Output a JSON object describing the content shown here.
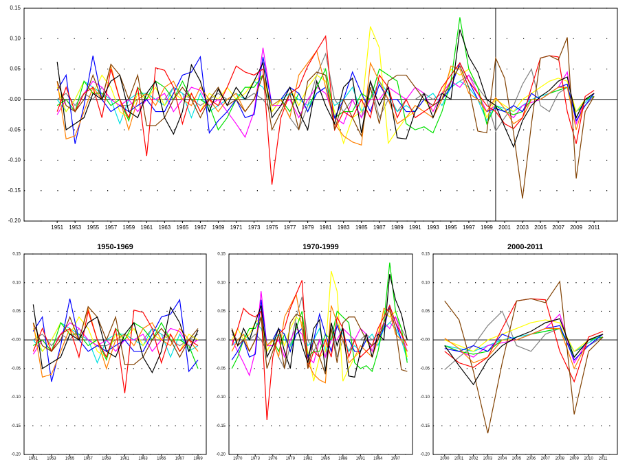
{
  "chart_data": [
    {
      "type": "line",
      "x": [
        1951,
        1952,
        1953,
        1954,
        1955,
        1956,
        1957,
        1958,
        1959,
        1960,
        1961,
        1962,
        1963,
        1964,
        1965,
        1966,
        1967,
        1968,
        1969,
        1970,
        1971,
        1972,
        1973,
        1974,
        1975,
        1976,
        1977,
        1978,
        1979,
        1980,
        1981,
        1982,
        1983,
        1984,
        1985,
        1986,
        1987,
        1988,
        1989,
        1990,
        1991,
        1992,
        1993,
        1994,
        1995,
        1996,
        1997,
        1998,
        1999,
        2000,
        2001,
        2002,
        2003,
        2004,
        2005,
        2006,
        2007,
        2008,
        2009,
        2010,
        2011
      ],
      "xlim": [
        1947.3,
        2013.6
      ],
      "ylim": [
        -0.2,
        0.15
      ],
      "xticks": [
        1951,
        1953,
        1955,
        1957,
        1959,
        1961,
        1963,
        1965,
        1967,
        1969,
        1971,
        1973,
        1975,
        1977,
        1979,
        1981,
        1983,
        1985,
        1987,
        1989,
        1991,
        1993,
        1995,
        1997,
        1999,
        2001,
        2003,
        2005,
        2007,
        2009,
        2011
      ],
      "yticks": [
        0.15,
        {
          "value": 0.1,
          "label": "0.10"
        },
        0.05,
        {
          "value": 0,
          "label": "-0.00"
        },
        -0.05,
        {
          "value": -0.1,
          "label": "-0.10"
        },
        -0.15,
        {
          "value": -0.2,
          "label": "-0.20"
        }
      ],
      "grid": true,
      "vline": 2000,
      "series": [
        {
          "color": "#808080",
          "values": [
            0.0,
            0.01,
            -0.01,
            0.01,
            0.0,
            0.02,
            0.0,
            -0.01,
            -0.01,
            0.0,
            0.01,
            0.0,
            0.0,
            0.02,
            0.01,
            0.0,
            -0.01,
            0.0,
            0.01,
            0.0,
            0.01,
            0.0,
            0.01,
            0.0,
            -0.02,
            0.0,
            -0.03,
            -0.05,
            -0.01,
            0.04,
            0.075,
            0.0,
            -0.02,
            0.0,
            -0.03,
            0.03,
            -0.03,
            0.0,
            -0.02,
            0.0,
            0.0,
            0.01,
            0.0,
            0.01,
            0.02,
            0.03,
            0.04,
            0.02,
            0.0,
            -0.052,
            -0.03,
            -0.01,
            0.025,
            0.05,
            -0.01,
            -0.02,
            0.01,
            0.02,
            -0.02,
            -0.01,
            0.005
          ]
        },
        {
          "color": "#00e0e0",
          "values": [
            0.0,
            -0.02,
            0.0,
            0.03,
            0.02,
            0.01,
            0.0,
            -0.04,
            0.0,
            0.01,
            0.01,
            0.0,
            -0.01,
            0.02,
            0.01,
            -0.03,
            0.01,
            -0.02,
            -0.01,
            0.0,
            0.01,
            0.0,
            0.03,
            0.02,
            -0.01,
            0.0,
            0.01,
            0.0,
            -0.01,
            0.01,
            0.02,
            -0.01,
            0.0,
            0.02,
            -0.02,
            0.0,
            0.03,
            0.01,
            -0.02,
            -0.01,
            -0.02,
            0.0,
            0.01,
            -0.01,
            0.02,
            0.03,
            0.02,
            0.0,
            -0.035,
            -0.01,
            -0.015,
            -0.02,
            -0.01,
            0.0,
            0.005,
            0.01,
            0.015,
            0.02,
            -0.02,
            -0.005,
            0.01
          ]
        },
        {
          "color": "#ffff00",
          "values": [
            0.02,
            -0.02,
            0.0,
            0.03,
            0.01,
            0.04,
            0.02,
            -0.02,
            -0.03,
            0.01,
            0.0,
            0.02,
            -0.01,
            0.01,
            0.0,
            0.01,
            -0.02,
            0.01,
            0.0,
            0.02,
            0.0,
            0.01,
            0.03,
            0.04,
            -0.02,
            0.0,
            0.02,
            -0.01,
            0.02,
            0.04,
            0.03,
            -0.02,
            -0.072,
            -0.03,
            -0.02,
            0.12,
            0.085,
            -0.072,
            -0.05,
            -0.03,
            -0.02,
            0.0,
            -0.02,
            0.01,
            0.05,
            0.04,
            0.05,
            0.02,
            -0.03,
            0.0,
            -0.01,
            -0.02,
            0.0,
            0.01,
            0.02,
            0.03,
            0.035,
            0.03,
            -0.02,
            0.0,
            0.01
          ]
        },
        {
          "color": "#ff00ff",
          "values": [
            -0.025,
            0.0,
            -0.02,
            0.01,
            0.03,
            0.02,
            0.0,
            -0.01,
            0.0,
            -0.02,
            0.0,
            0.0,
            0.01,
            -0.02,
            0.0,
            0.02,
            0.015,
            -0.01,
            0.0,
            -0.02,
            -0.04,
            -0.062,
            -0.02,
            0.085,
            -0.01,
            -0.01,
            0.0,
            -0.03,
            0.0,
            0.02,
            0.01,
            -0.03,
            -0.04,
            0.0,
            -0.03,
            0.0,
            0.0,
            0.02,
            0.01,
            0.0,
            0.02,
            0.01,
            -0.02,
            0.01,
            0.03,
            0.02,
            0.04,
            0.01,
            -0.02,
            -0.01,
            -0.02,
            -0.03,
            -0.01,
            -0.005,
            0.0,
            0.01,
            0.02,
            0.045,
            -0.04,
            0.0,
            0.01
          ]
        },
        {
          "color": "#00e000",
          "values": [
            -0.01,
            0.0,
            -0.02,
            0.03,
            0.01,
            0.01,
            -0.01,
            0.0,
            -0.035,
            0.02,
            0.0,
            0.03,
            0.02,
            0.0,
            0.03,
            0.0,
            0.0,
            -0.01,
            -0.05,
            -0.03,
            0.0,
            0.02,
            0.02,
            0.04,
            -0.01,
            0.0,
            -0.02,
            0.01,
            -0.02,
            0.02,
            0.05,
            -0.03,
            -0.02,
            -0.02,
            0.01,
            0.0,
            0.05,
            0.04,
            0.03,
            -0.04,
            -0.05,
            -0.045,
            -0.055,
            -0.02,
            0.03,
            0.135,
            0.05,
            0.02,
            -0.04,
            -0.01,
            -0.02,
            -0.025,
            -0.02,
            0.0,
            0.0,
            0.01,
            0.015,
            0.02,
            -0.03,
            0.0,
            0.005
          ]
        },
        {
          "color": "#0000ff",
          "values": [
            0.015,
            0.04,
            -0.073,
            -0.01,
            0.072,
            0.0,
            -0.02,
            -0.01,
            -0.02,
            -0.01,
            0.0,
            -0.02,
            -0.02,
            0.01,
            0.04,
            0.045,
            0.07,
            -0.055,
            -0.035,
            -0.02,
            0.0,
            -0.03,
            -0.025,
            0.07,
            -0.01,
            0.0,
            0.02,
            0.01,
            -0.02,
            0.01,
            0.02,
            -0.03,
            0.0,
            0.045,
            0.01,
            -0.02,
            0.025,
            0.0,
            0.0,
            -0.02,
            -0.02,
            0.0,
            -0.01,
            0.0,
            0.02,
            0.06,
            0.03,
            0.0,
            -0.02,
            -0.015,
            -0.02,
            -0.01,
            -0.02,
            0.01,
            0.0,
            0.01,
            0.02,
            0.025,
            -0.035,
            -0.01,
            0.01
          ]
        },
        {
          "color": "#ff8000",
          "values": [
            0.03,
            -0.065,
            -0.06,
            -0.02,
            0.02,
            0.0,
            0.055,
            0.0,
            -0.05,
            0.0,
            0.01,
            -0.01,
            0.02,
            0.03,
            0.0,
            -0.01,
            0.02,
            0.0,
            -0.02,
            0.0,
            0.01,
            -0.02,
            0.0,
            0.04,
            -0.01,
            0.0,
            -0.03,
            0.04,
            0.06,
            0.08,
            0.02,
            -0.04,
            -0.06,
            -0.07,
            -0.075,
            0.06,
            0.03,
            0.0,
            -0.04,
            -0.03,
            -0.01,
            -0.02,
            -0.03,
            0.0,
            0.055,
            0.05,
            0.01,
            0.0,
            -0.02,
            0.003,
            -0.015,
            -0.04,
            -0.03,
            0.0,
            0.0,
            0.01,
            0.02,
            0.02,
            -0.05,
            0.0,
            0.01
          ]
        },
        {
          "color": "#ff0000",
          "values": [
            -0.02,
            0.02,
            -0.02,
            0.01,
            0.02,
            -0.03,
            0.05,
            0.0,
            -0.03,
            0.02,
            -0.093,
            0.052,
            0.048,
            0.02,
            -0.04,
            0.01,
            -0.02,
            0.0,
            -0.01,
            0.02,
            0.055,
            0.045,
            0.04,
            0.05,
            -0.14,
            -0.03,
            0.01,
            0.02,
            0.055,
            0.08,
            0.104,
            -0.05,
            -0.02,
            -0.03,
            0.0,
            -0.03,
            0.04,
            0.02,
            -0.03,
            0.0,
            -0.03,
            -0.02,
            -0.01,
            0.02,
            0.04,
            0.06,
            0.03,
            0.01,
            -0.01,
            -0.02,
            -0.04,
            -0.048,
            -0.03,
            0.02,
            0.068,
            0.072,
            0.07,
            -0.02,
            -0.073,
            0.005,
            0.015
          ]
        },
        {
          "color": "#804000",
          "values": [
            0.03,
            -0.01,
            -0.02,
            0.0,
            0.04,
            0.0,
            0.058,
            0.04,
            0.0,
            0.04,
            -0.043,
            -0.043,
            -0.03,
            0.0,
            0.02,
            0.0,
            -0.03,
            0.0,
            0.02,
            -0.01,
            0.0,
            -0.02,
            0.0,
            0.04,
            -0.05,
            -0.02,
            0.01,
            -0.05,
            0.03,
            0.045,
            0.04,
            -0.05,
            0.0,
            -0.03,
            -0.06,
            0.02,
            -0.04,
            0.03,
            0.04,
            0.04,
            0.02,
            0.0,
            -0.01,
            0.0,
            0.03,
            0.055,
            0.02,
            -0.052,
            -0.055,
            0.068,
            0.035,
            -0.055,
            -0.163,
            -0.04,
            0.068,
            0.072,
            0.065,
            0.102,
            -0.13,
            -0.02,
            0.005
          ]
        },
        {
          "color": "#000000",
          "values": [
            0.062,
            -0.05,
            -0.04,
            -0.03,
            0.01,
            0.0,
            0.03,
            0.04,
            -0.02,
            -0.03,
            0.01,
            0.03,
            -0.03,
            -0.057,
            -0.02,
            0.057,
            0.03,
            -0.02,
            0.017,
            -0.01,
            0.02,
            0.0,
            0.03,
            0.06,
            -0.03,
            -0.01,
            0.02,
            -0.02,
            -0.05,
            0.03,
            -0.01,
            -0.04,
            0.02,
            0.035,
            -0.055,
            0.03,
            -0.01,
            0.02,
            -0.063,
            -0.065,
            -0.02,
            0.01,
            -0.03,
            0.01,
            0.0,
            0.115,
            0.07,
            0.045,
            0.0,
            -0.01,
            -0.045,
            -0.078,
            -0.035,
            -0.01,
            0.005,
            0.015,
            0.03,
            0.037,
            -0.03,
            0.0,
            0.01
          ]
        }
      ]
    },
    {
      "type": "line",
      "title": "1950-1969",
      "xlim": [
        1950,
        1969.9
      ],
      "ylim": [
        -0.2,
        0.15
      ],
      "xticks": [
        1951,
        1953,
        1955,
        1957,
        1959,
        1961,
        1963,
        1965,
        1967,
        1969
      ],
      "yticks": [
        0.15,
        {
          "value": 0.1,
          "label": "0.10"
        },
        0.05,
        {
          "value": 0,
          "label": "-0.00"
        },
        -0.05,
        {
          "value": -0.1,
          "label": "-0.10"
        },
        -0.15,
        {
          "value": -0.2,
          "label": "-0.20"
        }
      ],
      "grid": true
    },
    {
      "type": "line",
      "title": "1970-1999",
      "xlim": [
        1968.5,
        1999.9
      ],
      "ylim": [
        -0.2,
        0.15
      ],
      "xticks": [
        1970,
        1973,
        1976,
        1979,
        1982,
        1985,
        1988,
        1991,
        1994,
        1997
      ],
      "yticks": [
        0.15,
        {
          "value": 0.1,
          "label": "0.10"
        },
        0.05,
        {
          "value": 0,
          "label": "-0.00"
        },
        -0.05,
        {
          "value": -0.1,
          "label": "-0.10"
        },
        -0.15,
        {
          "value": -0.2,
          "label": "-0.20"
        }
      ],
      "grid": true
    },
    {
      "type": "line",
      "title": "2000-2011",
      "xlim": [
        1999.2,
        2012
      ],
      "ylim": [
        -0.2,
        0.15
      ],
      "xticks": [
        2000,
        2001,
        2002,
        2003,
        2004,
        2005,
        2006,
        2007,
        2008,
        2009,
        2010,
        2011
      ],
      "yticks": [
        0.15,
        {
          "value": 0.1,
          "label": "0.10"
        },
        0.05,
        {
          "value": 0,
          "label": "-0.00"
        },
        -0.05,
        {
          "value": -0.1,
          "label": "-0.10"
        },
        -0.15,
        {
          "value": -0.2,
          "label": "-0.20"
        }
      ],
      "grid": true
    }
  ]
}
